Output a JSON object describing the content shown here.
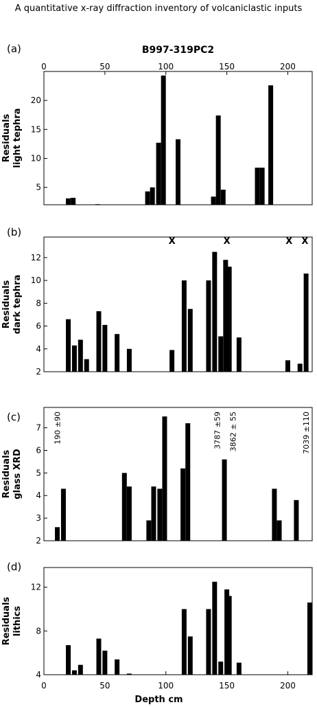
{
  "header": "A quantitative x-ray diffraction inventory of volcaniclastic inputs",
  "chart_data": [
    {
      "type": "bar",
      "panel_label": "(a)",
      "title": "B997-319PC2",
      "ylabel": [
        "Residuals",
        "light tephra"
      ],
      "xlim": [
        0,
        220
      ],
      "ylim": [
        2,
        25
      ],
      "xticks": [
        0,
        50,
        100,
        150,
        200
      ],
      "xtick_side": "top",
      "yticks": [
        5,
        10,
        15,
        20
      ],
      "grid": false,
      "x": [
        20,
        24,
        44,
        85,
        89,
        94,
        98,
        110,
        139,
        143,
        147,
        175,
        179,
        186
      ],
      "values": [
        3.1,
        3.2,
        2.1,
        4.3,
        5.0,
        12.7,
        24.3,
        13.3,
        3.4,
        17.4,
        4.6,
        8.4,
        8.4,
        22.6
      ]
    },
    {
      "type": "bar",
      "panel_label": "(b)",
      "ylabel": [
        "Residuals",
        "dark tephra"
      ],
      "xlim": [
        0,
        220
      ],
      "ylim": [
        2,
        13.8
      ],
      "yticks": [
        2,
        4,
        6,
        8,
        10,
        12
      ],
      "grid": false,
      "x": [
        20,
        25,
        30,
        35,
        45,
        50,
        60,
        70,
        105,
        115,
        120,
        135,
        140,
        145,
        149,
        152,
        160,
        200,
        210,
        215
      ],
      "values": [
        6.6,
        4.3,
        4.8,
        3.1,
        7.3,
        6.1,
        5.3,
        4.0,
        3.9,
        10.0,
        7.5,
        10.0,
        12.5,
        5.1,
        11.8,
        11.2,
        5.0,
        3.0,
        2.7,
        10.6
      ],
      "annotations": [
        {
          "x": 105,
          "text": "X"
        },
        {
          "x": 150,
          "text": "X"
        },
        {
          "x": 201,
          "text": "X"
        },
        {
          "x": 214,
          "text": "X"
        }
      ]
    },
    {
      "type": "bar",
      "panel_label": "(c)",
      "ylabel": [
        "Residuals",
        "glass XRD"
      ],
      "xlim": [
        0,
        220
      ],
      "ylim": [
        2,
        7.9
      ],
      "yticks": [
        2,
        3,
        4,
        5,
        6,
        7
      ],
      "grid": false,
      "x": [
        11,
        16,
        66,
        70,
        86,
        90,
        95,
        99,
        114,
        118,
        148,
        189,
        193,
        207
      ],
      "values": [
        2.6,
        4.3,
        5.0,
        4.4,
        2.9,
        4.4,
        4.3,
        7.5,
        5.2,
        7.2,
        5.6,
        4.3,
        2.9,
        3.8
      ],
      "annotations": [
        {
          "x": 11,
          "text": "190 ±90"
        },
        {
          "x": 142,
          "text": "3787 ±59"
        },
        {
          "x": 155,
          "text": "3862 ± 55"
        },
        {
          "x": 215,
          "text": "7039 ±110"
        }
      ]
    },
    {
      "type": "bar",
      "panel_label": "(d)",
      "ylabel": [
        "Residuals",
        "lithics"
      ],
      "xlabel": "Depth cm",
      "xlim": [
        0,
        220
      ],
      "ylim": [
        4,
        13.8
      ],
      "xticks": [
        0,
        50,
        100,
        150,
        200
      ],
      "xtick_side": "bottom",
      "yticks": [
        4,
        8,
        12
      ],
      "grid": false,
      "x": [
        20,
        25,
        30,
        45,
        50,
        60,
        70,
        115,
        120,
        135,
        140,
        145,
        150,
        152,
        160,
        218
      ],
      "values": [
        6.7,
        4.4,
        4.9,
        7.3,
        6.2,
        5.4,
        4.1,
        10.0,
        7.5,
        10.0,
        12.5,
        5.2,
        11.8,
        11.2,
        5.1,
        10.6
      ]
    }
  ]
}
